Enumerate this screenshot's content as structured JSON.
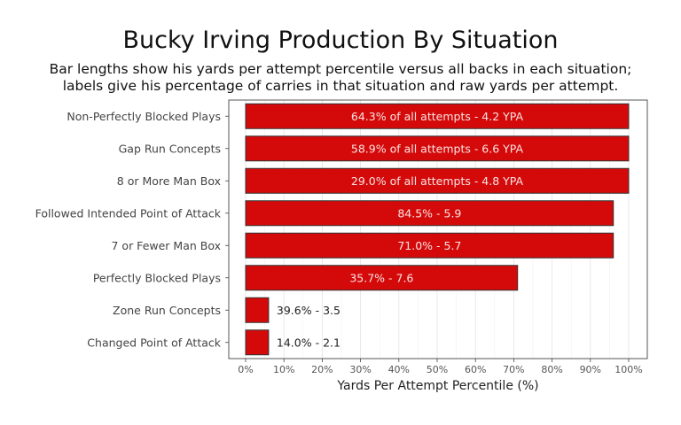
{
  "chart_data": {
    "type": "bar",
    "orientation": "horizontal",
    "title": "Bucky Irving Production By Situation",
    "subtitle": [
      "Bar lengths show his yards per attempt percentile versus all backs in each situation;",
      "labels give his percentage of carries in that situation and raw yards per attempt."
    ],
    "xlabel": "Yards Per Attempt Percentile (%)",
    "ylabel": "",
    "xlim": [
      0,
      100
    ],
    "x_ticks": [
      "0%",
      "10%",
      "20%",
      "30%",
      "40%",
      "50%",
      "60%",
      "70%",
      "80%",
      "90%",
      "100%"
    ],
    "grid": true,
    "categories": [
      "Non-Perfectly Blocked Plays",
      "Gap Run Concepts",
      "8 or More Man Box",
      "Followed Intended Point of Attack",
      "7 or Fewer Man Box",
      "Perfectly Blocked Plays",
      "Zone Run Concepts",
      "Changed Point of Attack"
    ],
    "values": [
      100,
      100,
      100,
      96,
      96,
      71,
      6,
      6
    ],
    "data_labels": [
      "64.3% of all attempts - 4.2 YPA",
      "58.9% of all attempts - 6.6 YPA",
      "29.0% of all attempts - 4.8 YPA",
      "84.5% - 5.9",
      "71.0% - 5.7",
      "35.7% - 7.6",
      "39.6% - 3.5",
      "14.0% - 2.1"
    ],
    "bar_color": "#D40A0A",
    "bar_outline": "#333333"
  }
}
